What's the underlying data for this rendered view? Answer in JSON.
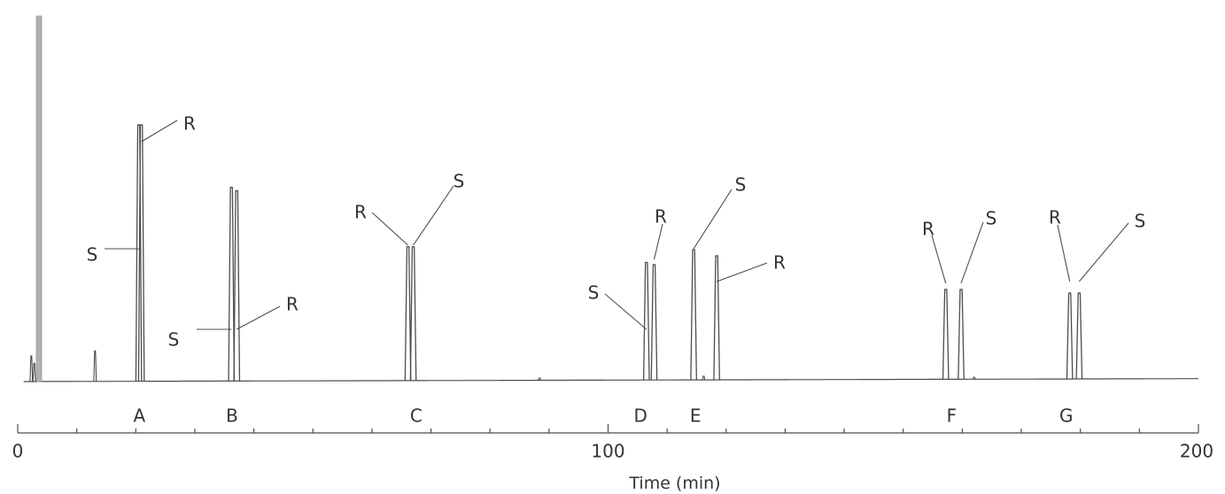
{
  "chart_data": {
    "type": "line",
    "title": "",
    "xlabel": "Time (min)",
    "ylabel": "",
    "xlim": [
      0,
      200
    ],
    "ylim": [
      0,
      100
    ],
    "x_ticks": [
      0,
      100,
      200
    ],
    "x_tick_labels": [
      "0",
      "100",
      "200"
    ],
    "minor_tick_step": 10,
    "grid": false,
    "legend": "none",
    "colors": {
      "trace": "#4d4d4d",
      "solvent": "#b0b0b0",
      "text": "#333333"
    },
    "solvent_peak": {
      "t": 3.6,
      "y": 100,
      "width": 1.0
    },
    "small_peaks": [
      {
        "t": 2.3,
        "y": 7
      },
      {
        "t": 2.8,
        "y": 5
      },
      {
        "t": 13.1,
        "y": 8.4
      },
      {
        "t": 88.4,
        "y": 1.0
      },
      {
        "t": 116.2,
        "y": 1.5
      },
      {
        "t": 162.0,
        "y": 1.2
      }
    ],
    "groups": [
      {
        "label": "A",
        "label_x": 20.6,
        "peaks": [
          {
            "name": "S",
            "t": 20.5,
            "y": 70.2
          },
          {
            "name": "R",
            "t": 20.95,
            "y": 70.2
          }
        ]
      },
      {
        "label": "B",
        "label_x": 36.3,
        "peaks": [
          {
            "name": "S",
            "t": 36.2,
            "y": 53.1
          },
          {
            "name": "R",
            "t": 37.1,
            "y": 52.2
          }
        ]
      },
      {
        "label": "C",
        "label_x": 67.5,
        "peaks": [
          {
            "name": "R",
            "t": 66.1,
            "y": 36.9
          },
          {
            "name": "S",
            "t": 67.0,
            "y": 36.9
          }
        ]
      },
      {
        "label": "D",
        "label_x": 105.5,
        "peaks": [
          {
            "name": "S",
            "t": 106.5,
            "y": 32.6
          },
          {
            "name": "R",
            "t": 107.8,
            "y": 32.0
          }
        ]
      },
      {
        "label": "E",
        "label_x": 114.8,
        "peaks": [
          {
            "name": "S",
            "t": 114.5,
            "y": 36.1
          },
          {
            "name": "R",
            "t": 118.4,
            "y": 34.4
          }
        ]
      },
      {
        "label": "F",
        "label_x": 158.2,
        "peaks": [
          {
            "name": "R",
            "t": 157.2,
            "y": 25.2
          },
          {
            "name": "S",
            "t": 159.8,
            "y": 25.2
          }
        ]
      },
      {
        "label": "G",
        "label_x": 177.6,
        "peaks": [
          {
            "name": "R",
            "t": 178.2,
            "y": 24.2
          },
          {
            "name": "S",
            "t": 179.8,
            "y": 24.2
          }
        ]
      }
    ]
  }
}
